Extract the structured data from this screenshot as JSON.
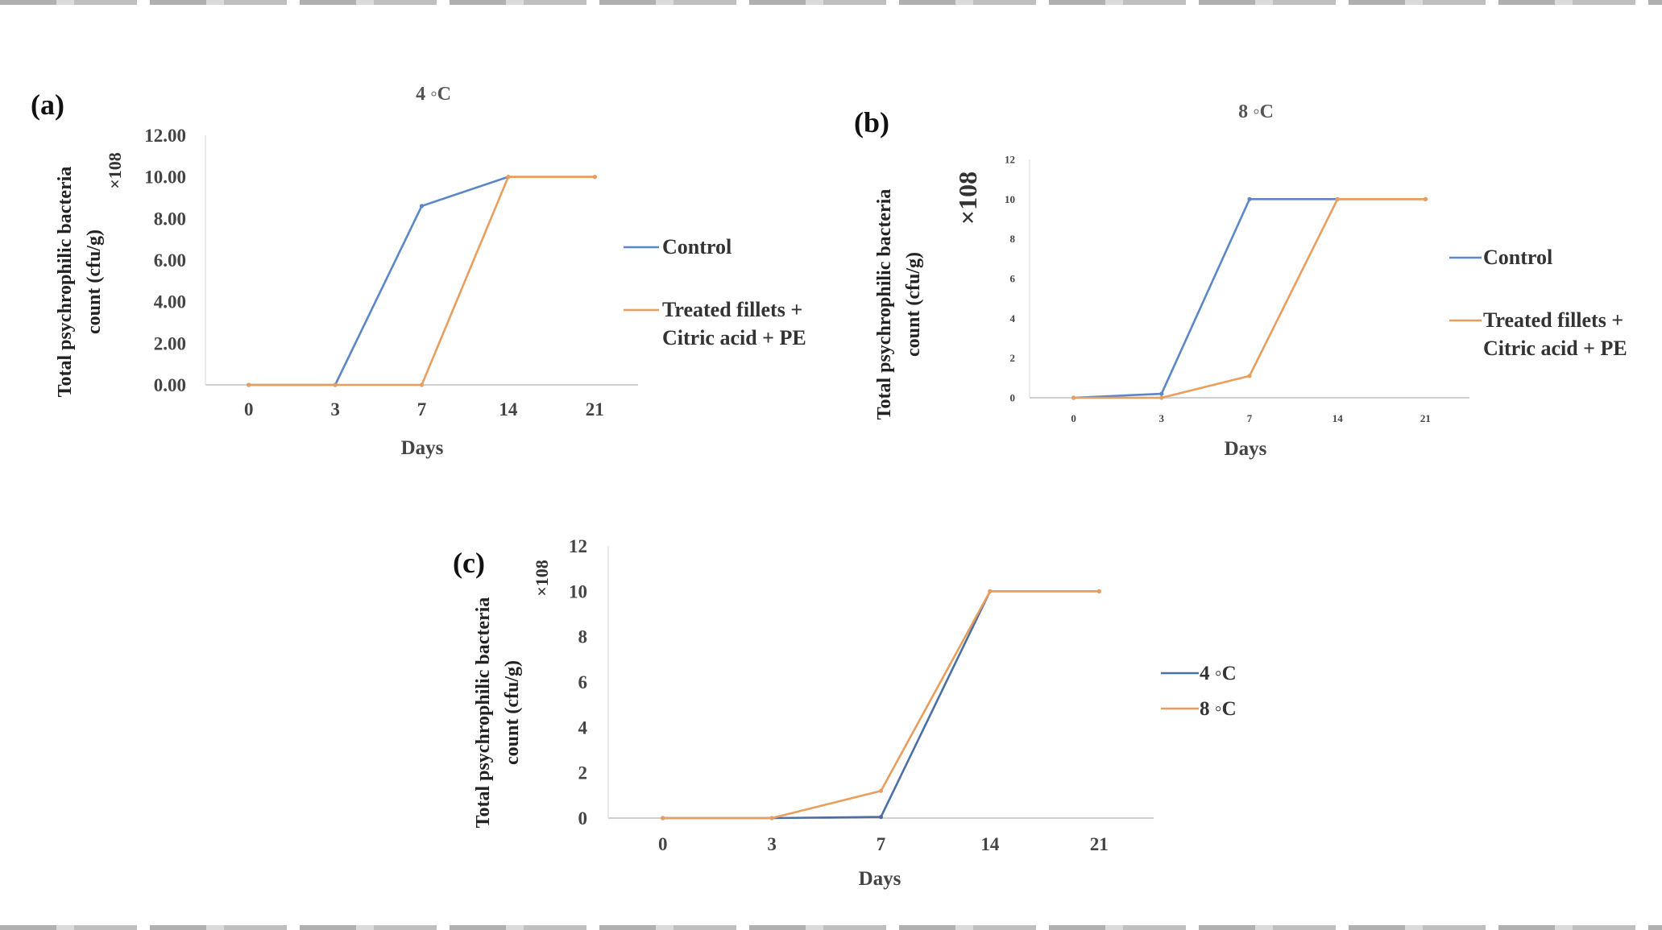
{
  "chart_data": [
    {
      "type": "line",
      "panel_label": "(a)",
      "title": "4 ◦C",
      "ylabel": "Total psychrophilic bacteria count (cfu/g)",
      "ylabel_lines": [
        "Total psychrophilic bacteria",
        "count (cfu/g)"
      ],
      "multiplier": "×108",
      "xlabel": "Days",
      "categories": [
        "0",
        "3",
        "7",
        "14",
        "21"
      ],
      "yticks": [
        "0.00",
        "2.00",
        "4.00",
        "6.00",
        "8.00",
        "10.00",
        "12.00"
      ],
      "ylim": [
        0,
        12
      ],
      "grid": false,
      "legend_position": "right",
      "series": [
        {
          "name": "Control",
          "label_lines": [
            "Control"
          ],
          "color": "#5b87c7",
          "values": [
            0,
            0,
            8.6,
            10,
            10
          ]
        },
        {
          "name": "Treated fillets + Citric acid + PE",
          "label_lines": [
            "Treated fillets +",
            "Citric acid + PE"
          ],
          "color": "#e99e5e",
          "values": [
            0,
            0,
            0,
            10,
            10
          ]
        }
      ]
    },
    {
      "type": "line",
      "panel_label": "(b)",
      "title": "8 ◦C",
      "ylabel": "Total psychrophilic bacteria count (cfu/g)",
      "ylabel_lines": [
        "Total psychrophilic bacteria",
        "count (cfu/g)"
      ],
      "multiplier": "×108",
      "xlabel": "Days",
      "categories": [
        "0",
        "3",
        "7",
        "14",
        "21"
      ],
      "yticks": [
        "0",
        "2",
        "4",
        "6",
        "8",
        "10",
        "12"
      ],
      "ylim": [
        0,
        12
      ],
      "grid": false,
      "legend_position": "right",
      "series": [
        {
          "name": "Control",
          "label_lines": [
            "Control"
          ],
          "color": "#5b87c7",
          "values": [
            0,
            0.2,
            10,
            10,
            10
          ]
        },
        {
          "name": "Treated fillets + Citric acid + PE",
          "label_lines": [
            "Treated fillets +",
            "Citric acid + PE"
          ],
          "color": "#e99e5e",
          "values": [
            0,
            0,
            1.1,
            10,
            10
          ]
        }
      ]
    },
    {
      "type": "line",
      "panel_label": "(c)",
      "title": "",
      "ylabel": "Total psychrophilic bacteria count (cfu/g)",
      "ylabel_lines": [
        "Total psychrophilic bacteria",
        "count (cfu/g)"
      ],
      "multiplier": "×108",
      "xlabel": "Days",
      "categories": [
        "0",
        "3",
        "7",
        "14",
        "21"
      ],
      "yticks": [
        "0",
        "2",
        "4",
        "6",
        "8",
        "10",
        "12"
      ],
      "ylim": [
        0,
        12
      ],
      "grid": false,
      "legend_position": "right",
      "series": [
        {
          "name": "4 ◦C",
          "label_lines": [
            "4 ◦C"
          ],
          "color": "#4a6fa5",
          "values": [
            0,
            0,
            0.05,
            10,
            10
          ]
        },
        {
          "name": "8 ◦C",
          "label_lines": [
            "8 ◦C"
          ],
          "color": "#e99e5e",
          "values": [
            0,
            0,
            1.2,
            10,
            10
          ]
        }
      ]
    }
  ]
}
